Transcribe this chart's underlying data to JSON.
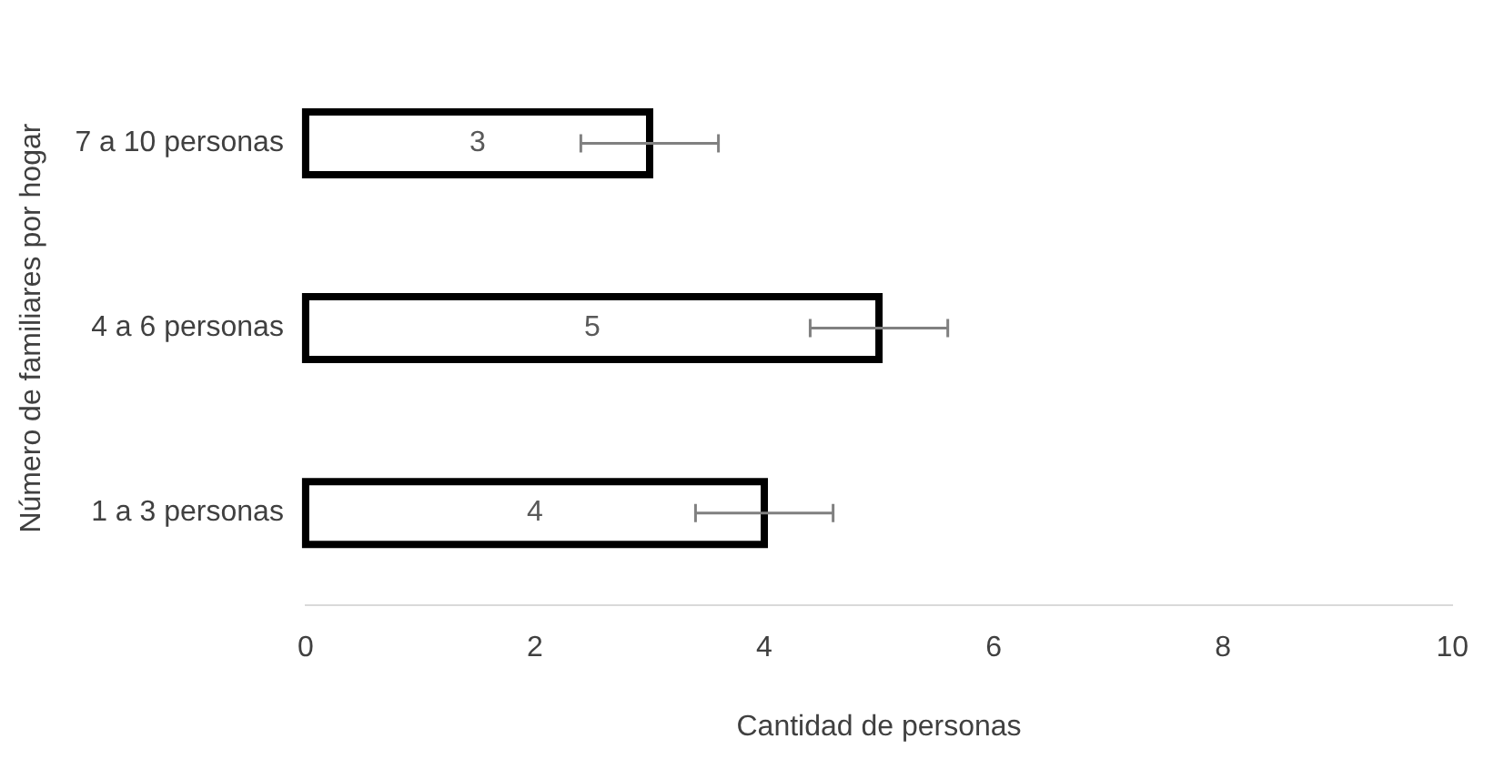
{
  "chart_data": {
    "type": "bar",
    "orientation": "horizontal",
    "xlabel": "Cantidad de personas",
    "ylabel": "Número de familiares por hogar",
    "categories": [
      "7 a 10 personas",
      "4 a 6 personas",
      "1 a 3 personas"
    ],
    "values": [
      3,
      5,
      4
    ],
    "errors": [
      0.6,
      0.6,
      0.6
    ],
    "color": "#000000",
    "data_labels": true,
    "xlim": [
      0,
      10
    ],
    "xticks": [
      0,
      2,
      4,
      6,
      8,
      10
    ],
    "grid": false,
    "legend": false
  }
}
